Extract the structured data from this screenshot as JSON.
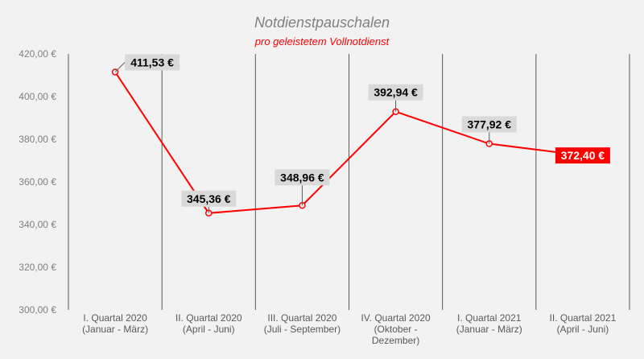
{
  "chart_data": {
    "type": "line",
    "title": "Notdienstpauschalen",
    "subtitle": "pro geleistetem Vollnotdienst",
    "categories": [
      [
        "I. Quartal 2020",
        "(Januar - März)"
      ],
      [
        "II. Quartal 2020",
        "(April - Juni)"
      ],
      [
        "III. Quartal 2020",
        "(Juli - September)"
      ],
      [
        "IV. Quartal 2020",
        "(Oktober -",
        "Dezember)"
      ],
      [
        "I. Quartal 2021",
        "(Januar - März)"
      ],
      [
        "II. Quartal 2021",
        "(April - Juni)"
      ]
    ],
    "series": [
      {
        "values": [
          411.53,
          345.36,
          348.96,
          392.94,
          377.92,
          372.4
        ],
        "labels": [
          "411,53 €",
          "345,36 €",
          "348,96 €",
          "392,94 €",
          "377,92 €",
          "372,40 €"
        ]
      }
    ],
    "ylim": [
      300,
      420
    ],
    "yticks": [
      300,
      320,
      340,
      360,
      380,
      400,
      420
    ],
    "ytick_labels": [
      "300,00 €",
      "320,00 €",
      "340,00 €",
      "360,00 €",
      "380,00 €",
      "400,00 €",
      "420,00 €"
    ],
    "xlabel": "",
    "ylabel": "",
    "grid": "vertical",
    "highlight_index": 5,
    "colors": {
      "line": "#ff0000",
      "marker_fill": "#f2f2f2",
      "label_bg": "#d9d9d9",
      "highlight_bg": "#ff0000",
      "grid": "#595959",
      "background": "#f2f2f2"
    }
  }
}
